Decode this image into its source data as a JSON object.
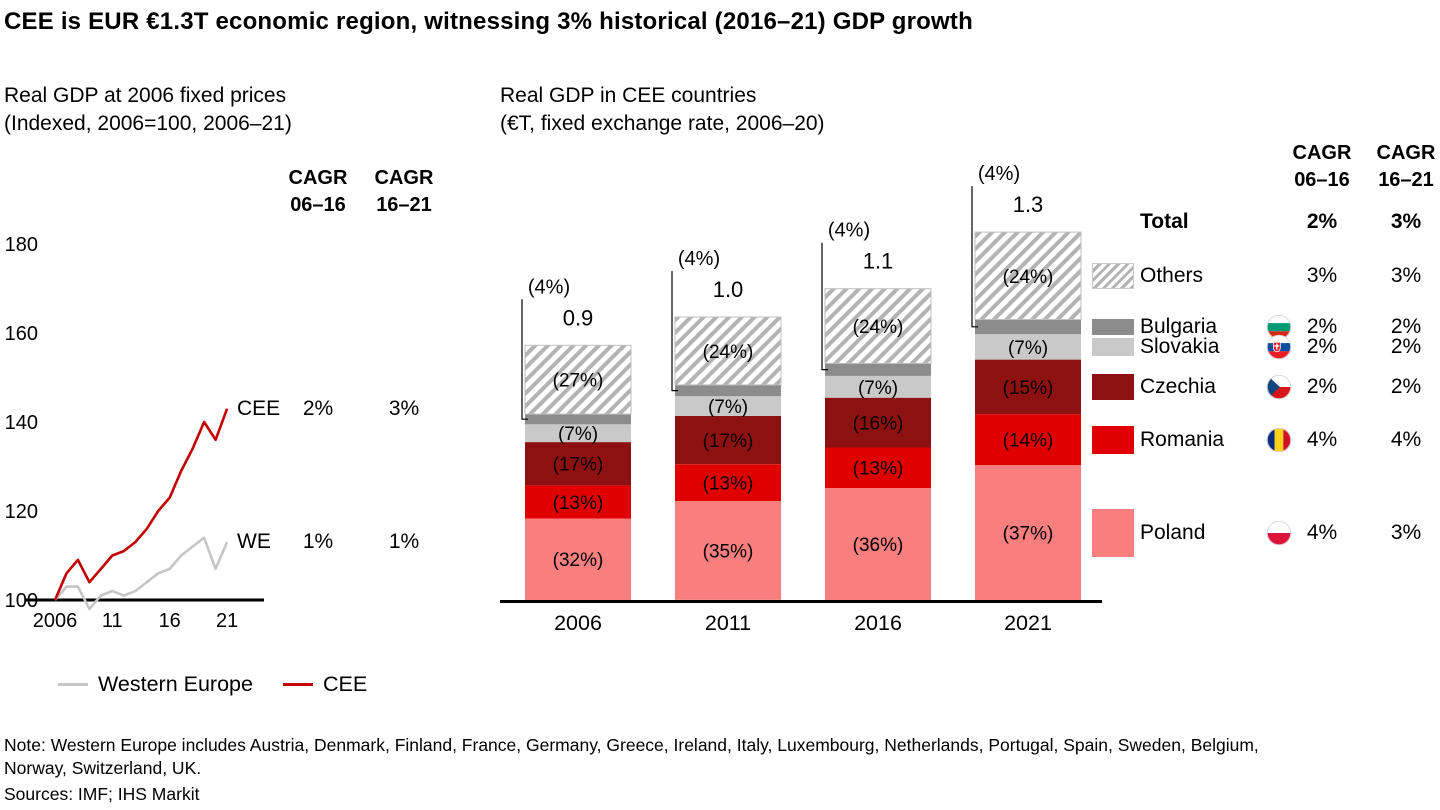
{
  "title": "CEE is EUR €1.3T economic region, witnessing 3% historical (2016–21) GDP growth",
  "left_panel": {
    "heading_line1": "Real GDP at 2006 fixed prices",
    "heading_line2": "(Indexed, 2006=100, 2006–21)",
    "cagr_col1": {
      "line1": "CAGR",
      "line2": "06–16"
    },
    "cagr_col2": {
      "line1": "CAGR",
      "line2": "16–21"
    }
  },
  "right_panel": {
    "heading_line1": "Real GDP in CEE countries",
    "heading_line2": "(€T, fixed exchange rate, 2006–20)"
  },
  "legend_table": {
    "header1": {
      "line1": "CAGR",
      "line2": "06–16"
    },
    "header2": {
      "line1": "CAGR",
      "line2": "16–21"
    },
    "rows": [
      {
        "label": "Total",
        "bold": true,
        "v1": "2%",
        "v2": "3%"
      },
      {
        "label": "Others",
        "v1": "3%",
        "v2": "3%"
      },
      {
        "label": "Bulgaria",
        "flag": "bg",
        "v1": "2%",
        "v2": "2%"
      },
      {
        "label": "Slovakia",
        "flag": "sk",
        "v1": "2%",
        "v2": "2%"
      },
      {
        "label": "Czechia",
        "flag": "cz",
        "v1": "2%",
        "v2": "2%"
      },
      {
        "label": "Romania",
        "flag": "ro",
        "v1": "4%",
        "v2": "4%"
      },
      {
        "label": "Poland",
        "flag": "pl",
        "v1": "4%",
        "v2": "3%"
      }
    ]
  },
  "chart_data": [
    {
      "type": "line",
      "title": "Real GDP at 2006 fixed prices (Indexed, 2006=100, 2006–21)",
      "x": [
        2006,
        2007,
        2008,
        2009,
        2010,
        2011,
        2012,
        2013,
        2014,
        2015,
        2016,
        2017,
        2018,
        2019,
        2020,
        2021
      ],
      "series": [
        {
          "name": "CEE",
          "short": "CEE",
          "color": "#c40000",
          "cagr_06_16": "2%",
          "cagr_16_21": "3%",
          "values": [
            100,
            106,
            109,
            104,
            107,
            110,
            111,
            113,
            116,
            120,
            123,
            129,
            134,
            140,
            136,
            143
          ]
        },
        {
          "name": "Western Europe",
          "short": "WE",
          "color": "#c6c6c6",
          "cagr_06_16": "1%",
          "cagr_16_21": "1%",
          "values": [
            100,
            103,
            103,
            98,
            101,
            102,
            101,
            102,
            104,
            106,
            107,
            110,
            112,
            114,
            107,
            113
          ]
        }
      ],
      "yticks": [
        100,
        120,
        140,
        160,
        180
      ],
      "ylim": [
        95,
        185
      ],
      "xtick_years": [
        2006,
        2011,
        2016,
        2021
      ],
      "xticks": [
        "2006",
        "11",
        "16",
        "21"
      ],
      "grid": false,
      "legend_position": "bottom"
    },
    {
      "type": "bar",
      "stacked": true,
      "title": "Real GDP in CEE countries (€T, fixed exchange rate, 2006–20)",
      "categories": [
        "2006",
        "2011",
        "2016",
        "2021"
      ],
      "totals": [
        0.9,
        1.0,
        1.1,
        1.3
      ],
      "unit": "€T",
      "series": [
        {
          "name": "Poland",
          "color": "#f97f7f",
          "label_color": "#ffffff",
          "label_in_bar": true,
          "share_pct": [
            32,
            35,
            36,
            37
          ]
        },
        {
          "name": "Romania",
          "color": "#e00000",
          "label_color": "#ffffff",
          "label_in_bar": true,
          "share_pct": [
            13,
            13,
            13,
            14
          ]
        },
        {
          "name": "Czechia",
          "color": "#8e1111",
          "label_color": "#ffffff",
          "label_in_bar": true,
          "share_pct": [
            17,
            17,
            16,
            15
          ]
        },
        {
          "name": "Slovakia",
          "color": "#c9c9c9",
          "label_color": "#000000",
          "label_in_bar": true,
          "share_pct": [
            7,
            7,
            7,
            7
          ]
        },
        {
          "name": "Bulgaria",
          "color": "#8c8c8c",
          "label_in_bar": false,
          "share_pct": [
            4,
            4,
            4,
            4
          ]
        },
        {
          "name": "Others",
          "pattern": "hatch",
          "label_color": "#000000",
          "label_in_bar": true,
          "share_pct": [
            27,
            24,
            24,
            24
          ]
        }
      ],
      "callout_label": "(4%)",
      "callout_series": "Bulgaria"
    }
  ],
  "note_line1": "Note: Western Europe includes Austria, Denmark, Finland, France, Germany, Greece, Ireland, Italy, Luxembourg, Netherlands, Portugal, Spain, Sweden, Belgium,",
  "note_line2": "Norway, Switzerland, UK.",
  "sources": "Sources: IMF; IHS Markit"
}
